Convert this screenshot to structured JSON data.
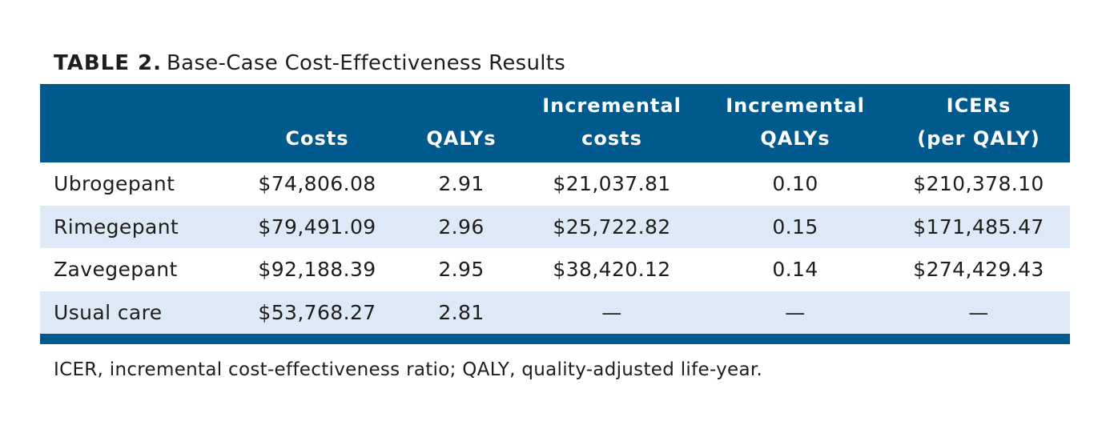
{
  "caption": {
    "label": "TABLE 2.",
    "title": "Base-Case Cost-Effectiveness Results"
  },
  "table": {
    "headers": [
      {
        "line1": "",
        "line2": ""
      },
      {
        "line1": "",
        "line2": "Costs"
      },
      {
        "line1": "",
        "line2": "QALYs"
      },
      {
        "line1": "Incremental",
        "line2": "costs"
      },
      {
        "line1": "Incremental",
        "line2": "QALYs"
      },
      {
        "line1": "ICERs",
        "line2": "(per QALY)"
      }
    ],
    "rows": [
      {
        "name": "Ubrogepant",
        "costs": "$74,806.08",
        "qalys": "2.91",
        "inc_costs": "$21,037.81",
        "inc_qalys": "0.10",
        "icer": "$210,378.10"
      },
      {
        "name": "Rimegepant",
        "costs": "$79,491.09",
        "qalys": "2.96",
        "inc_costs": "$25,722.82",
        "inc_qalys": "0.15",
        "icer": "$171,485.47"
      },
      {
        "name": "Zavegepant",
        "costs": "$92,188.39",
        "qalys": "2.95",
        "inc_costs": "$38,420.12",
        "inc_qalys": "0.14",
        "icer": "$274,429.43"
      },
      {
        "name": "Usual care",
        "costs": "$53,768.27",
        "qalys": "2.81",
        "inc_costs": "—",
        "inc_qalys": "—",
        "icer": "—"
      }
    ]
  },
  "footnote": "ICER, incremental cost-effectiveness ratio; QALY, quality-adjusted life-year.",
  "colors": {
    "header_bg": "#005a8e",
    "alt_row_bg": "#dde9f6",
    "text": "#1d1d1b"
  }
}
